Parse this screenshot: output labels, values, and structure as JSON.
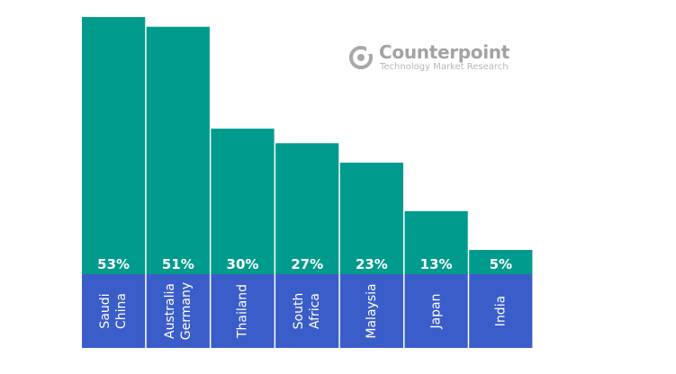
{
  "chart_data": {
    "type": "bar",
    "categories": [
      [
        "Saudi",
        "China"
      ],
      [
        "Australia",
        "Germany"
      ],
      [
        "Thailand"
      ],
      [
        "South",
        "Africa"
      ],
      [
        "Malaysia"
      ],
      [
        "Japan"
      ],
      [
        "India"
      ]
    ],
    "values": [
      53,
      51,
      30,
      27,
      23,
      13,
      5
    ],
    "value_labels": [
      "53%",
      "51%",
      "30%",
      "27%",
      "23%",
      "13%",
      "5%"
    ],
    "ylim": [
      0,
      53
    ],
    "grid": false,
    "legend": "none",
    "colors": {
      "bar": "#009b8c",
      "label_band": "#3b5dc9",
      "bar_text": "#ffffff",
      "band_text": "#ffffff"
    }
  },
  "watermark": {
    "brand": "Counterpoint",
    "tagline": "Technology Market Research",
    "icon": "counterpoint-logo-icon"
  }
}
